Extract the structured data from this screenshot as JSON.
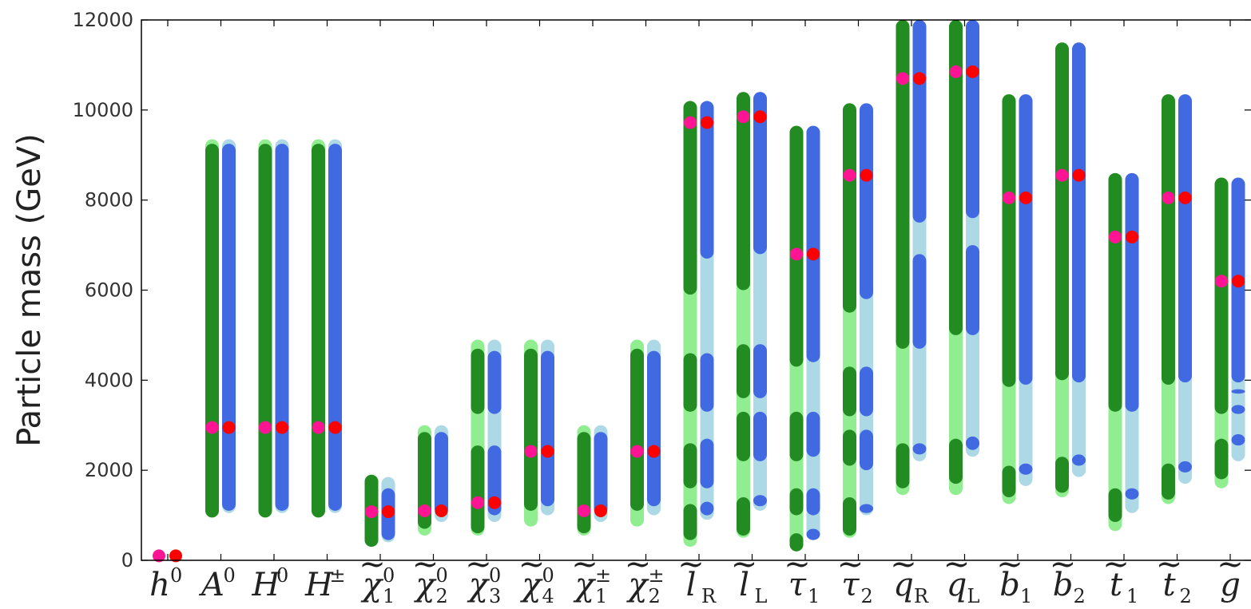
{
  "chart_data": {
    "type": "range",
    "ylabel": "Particle mass (GeV)",
    "ylim": [
      0,
      12000
    ],
    "yticks": [
      0,
      2000,
      4000,
      6000,
      8000,
      10000,
      12000
    ],
    "grid": false,
    "colors": {
      "green_dark": "#228b22",
      "green_light": "#90ee90",
      "blue_dark": "#4169e1",
      "blue_light": "#add8e6",
      "point_left": "#ff1493",
      "point_right": "#ff0000"
    },
    "particles": [
      {
        "label": {
          "base": "h",
          "sup": "0",
          "sub": "",
          "tilde": false
        },
        "central": 100,
        "left": {
          "light": [],
          "dark": []
        },
        "right": {
          "light": [],
          "dark": []
        }
      },
      {
        "label": {
          "base": "A",
          "sup": "0",
          "sub": "",
          "tilde": false
        },
        "central": 2950,
        "left": {
          "light": [
            [
              950,
              9350
            ]
          ],
          "dark": [
            [
              950,
              9250
            ]
          ]
        },
        "right": {
          "light": [
            [
              1050,
              9350
            ]
          ],
          "dark": [
            [
              1100,
              9250
            ]
          ]
        }
      },
      {
        "label": {
          "base": "H",
          "sup": "0",
          "sub": "",
          "tilde": false
        },
        "central": 2950,
        "left": {
          "light": [
            [
              950,
              9350
            ]
          ],
          "dark": [
            [
              950,
              9250
            ]
          ]
        },
        "right": {
          "light": [
            [
              1050,
              9350
            ]
          ],
          "dark": [
            [
              1100,
              9250
            ]
          ]
        }
      },
      {
        "label": {
          "base": "H",
          "sup": "±",
          "sub": "",
          "tilde": false
        },
        "central": 2950,
        "left": {
          "light": [
            [
              950,
              9350
            ]
          ],
          "dark": [
            [
              950,
              9250
            ]
          ]
        },
        "right": {
          "light": [
            [
              1050,
              9350
            ]
          ],
          "dark": [
            [
              1100,
              9250
            ]
          ]
        }
      },
      {
        "label": {
          "base": "χ",
          "sup": "0",
          "sub": "1",
          "tilde": true
        },
        "central": 1080,
        "left": {
          "light": [
            [
              300,
              1900
            ]
          ],
          "dark": [
            [
              300,
              1900
            ]
          ]
        },
        "right": {
          "light": [
            [
              400,
              1850
            ]
          ],
          "dark": [
            [
              450,
              1600
            ]
          ]
        }
      },
      {
        "label": {
          "base": "χ",
          "sup": "0",
          "sub": "2",
          "tilde": true
        },
        "central": 1100,
        "left": {
          "light": [
            [
              550,
              3000
            ]
          ],
          "dark": [
            [
              700,
              2850
            ],
            [
              2050,
              2350
            ]
          ]
        },
        "right": {
          "light": [
            [
              850,
              3000
            ]
          ],
          "dark": [
            [
              1000,
              2850
            ],
            [
              1650,
              2000
            ]
          ]
        }
      },
      {
        "label": {
          "base": "χ",
          "sup": "0",
          "sub": "3",
          "tilde": true
        },
        "central": 1280,
        "left": {
          "light": [
            [
              550,
              4900
            ]
          ],
          "dark": [
            [
              600,
              2550
            ],
            [
              3250,
              4700
            ]
          ]
        },
        "right": {
          "light": [
            [
              850,
              4900
            ]
          ],
          "dark": [
            [
              1000,
              2550
            ],
            [
              3250,
              4650
            ]
          ]
        }
      },
      {
        "label": {
          "base": "χ",
          "sup": "0",
          "sub": "4",
          "tilde": true
        },
        "central": 2420,
        "left": {
          "light": [
            [
              750,
              4900
            ]
          ],
          "dark": [
            [
              1100,
              4700
            ]
          ]
        },
        "right": {
          "light": [
            [
              1000,
              4900
            ]
          ],
          "dark": [
            [
              1200,
              4650
            ]
          ]
        }
      },
      {
        "label": {
          "base": "χ",
          "sup": "±",
          "sub": "1",
          "tilde": true
        },
        "central": 1100,
        "left": {
          "light": [
            [
              550,
              3000
            ]
          ],
          "dark": [
            [
              600,
              2850
            ]
          ]
        },
        "right": {
          "light": [
            [
              850,
              3000
            ]
          ],
          "dark": [
            [
              1000,
              2850
            ]
          ]
        }
      },
      {
        "label": {
          "base": "χ",
          "sup": "±",
          "sub": "2",
          "tilde": true
        },
        "central": 2420,
        "left": {
          "light": [
            [
              750,
              4900
            ]
          ],
          "dark": [
            [
              1100,
              4700
            ]
          ]
        },
        "right": {
          "light": [
            [
              1000,
              4900
            ]
          ],
          "dark": [
            [
              1200,
              4650
            ]
          ]
        }
      },
      {
        "label": {
          "base": "l",
          "sup": "",
          "sub": "R",
          "tilde": true
        },
        "central": 9720,
        "left": {
          "light": [
            [
              300,
              10200
            ]
          ],
          "dark": [
            [
              450,
              1250
            ],
            [
              1600,
              2600
            ],
            [
              3300,
              4600
            ],
            [
              5900,
              10200
            ]
          ]
        },
        "right": {
          "light": [
            [
              900,
              10200
            ]
          ],
          "dark": [
            [
              1000,
              1300
            ],
            [
              1600,
              2700
            ],
            [
              3300,
              4600
            ],
            [
              6700,
              10200
            ]
          ]
        }
      },
      {
        "label": {
          "base": "l",
          "sup": "",
          "sub": "L",
          "tilde": true
        },
        "central": 9850,
        "left": {
          "light": [
            [
              500,
              10400
            ]
          ],
          "dark": [
            [
              550,
              1400
            ],
            [
              2200,
              3300
            ],
            [
              3600,
              4800
            ],
            [
              6000,
              10400
            ]
          ]
        },
        "right": {
          "light": [
            [
              1100,
              10400
            ]
          ],
          "dark": [
            [
              1200,
              1450
            ],
            [
              2200,
              3300
            ],
            [
              3600,
              4800
            ],
            [
              6800,
              10400
            ]
          ]
        }
      },
      {
        "label": {
          "base": "τ",
          "sup": "",
          "sub": "1",
          "tilde": true
        },
        "central": 6800,
        "left": {
          "light": [
            [
              200,
              9650
            ]
          ],
          "dark": [
            [
              200,
              600
            ],
            [
              1000,
              1600
            ],
            [
              2200,
              3300
            ],
            [
              4300,
              9650
            ]
          ]
        },
        "right": {
          "light": [
            [
              450,
              9650
            ]
          ],
          "dark": [
            [
              450,
              700
            ],
            [
              1000,
              1600
            ],
            [
              2300,
              3300
            ],
            [
              4400,
              9650
            ]
          ]
        }
      },
      {
        "label": {
          "base": "τ",
          "sup": "",
          "sub": "2",
          "tilde": true
        },
        "central": 8550,
        "left": {
          "light": [
            [
              500,
              10150
            ]
          ],
          "dark": [
            [
              550,
              1400
            ],
            [
              2100,
              2900
            ],
            [
              3200,
              4300
            ],
            [
              5500,
              10150
            ]
          ]
        },
        "right": {
          "light": [
            [
              1000,
              10150
            ]
          ],
          "dark": [
            [
              1050,
              1250
            ],
            [
              2000,
              2900
            ],
            [
              3200,
              4300
            ],
            [
              5800,
              10150
            ]
          ]
        }
      },
      {
        "label": {
          "base": "q",
          "sup": "",
          "sub": "R",
          "tilde": true
        },
        "central": 10700,
        "left": {
          "light": [
            [
              1450,
              12000
            ]
          ],
          "dark": [
            [
              1600,
              2600
            ],
            [
              4700,
              12000
            ]
          ]
        },
        "right": {
          "light": [
            [
              2200,
              12000
            ]
          ],
          "dark": [
            [
              2350,
              2600
            ],
            [
              4700,
              6800
            ],
            [
              7500,
              12000
            ]
          ]
        }
      },
      {
        "label": {
          "base": "q",
          "sup": "",
          "sub": "L",
          "tilde": true
        },
        "central": 10850,
        "left": {
          "light": [
            [
              1450,
              12000
            ]
          ],
          "dark": [
            [
              1700,
              2700
            ],
            [
              5000,
              12000
            ]
          ]
        },
        "right": {
          "light": [
            [
              2300,
              12000
            ]
          ],
          "dark": [
            [
              2450,
              2750
            ],
            [
              5000,
              7000
            ],
            [
              7600,
              12000
            ]
          ]
        }
      },
      {
        "label": {
          "base": "b",
          "sup": "",
          "sub": "1",
          "tilde": true
        },
        "central": 8050,
        "left": {
          "light": [
            [
              1250,
              10350
            ]
          ],
          "dark": [
            [
              1400,
              2100
            ],
            [
              3850,
              10350
            ]
          ]
        },
        "right": {
          "light": [
            [
              1650,
              10350
            ]
          ],
          "dark": [
            [
              1900,
              2150
            ],
            [
              3900,
              10350
            ]
          ]
        }
      },
      {
        "label": {
          "base": "b",
          "sup": "",
          "sub": "2",
          "tilde": true
        },
        "central": 8550,
        "left": {
          "light": [
            [
              1400,
              11500
            ]
          ],
          "dark": [
            [
              1500,
              2300
            ],
            [
              4000,
              11500
            ]
          ]
        },
        "right": {
          "light": [
            [
              1850,
              11500
            ]
          ],
          "dark": [
            [
              2100,
              2350
            ],
            [
              3950,
              11500
            ]
          ]
        }
      },
      {
        "label": {
          "base": "t",
          "sup": "",
          "sub": "1",
          "tilde": true
        },
        "central": 7180,
        "left": {
          "light": [
            [
              650,
              8600
            ]
          ],
          "dark": [
            [
              850,
              1600
            ],
            [
              3300,
              8600
            ]
          ]
        },
        "right": {
          "light": [
            [
              1050,
              8600
            ]
          ],
          "dark": [
            [
              1350,
              1600
            ],
            [
              3300,
              8600
            ]
          ]
        }
      },
      {
        "label": {
          "base": "t",
          "sup": "",
          "sub": "2",
          "tilde": true
        },
        "central": 8050,
        "left": {
          "light": [
            [
              1250,
              10350
            ]
          ],
          "dark": [
            [
              1350,
              2150
            ],
            [
              3900,
              10350
            ]
          ]
        },
        "right": {
          "light": [
            [
              1700,
              10350
            ]
          ],
          "dark": [
            [
              1950,
              2200
            ],
            [
              3950,
              10350
            ]
          ]
        }
      },
      {
        "label": {
          "base": "g",
          "sup": "",
          "sub": "",
          "tilde": true
        },
        "central": 6200,
        "left": {
          "light": [
            [
              1600,
              8500
            ]
          ],
          "dark": [
            [
              1800,
              2700
            ],
            [
              3250,
              8500
            ]
          ]
        },
        "right": {
          "light": [
            [
              2200,
              8500
            ]
          ],
          "dark": [
            [
              2550,
              2800
            ],
            [
              3250,
              3450
            ],
            [
              3700,
              3800
            ],
            [
              3950,
              8500
            ]
          ]
        }
      }
    ]
  }
}
